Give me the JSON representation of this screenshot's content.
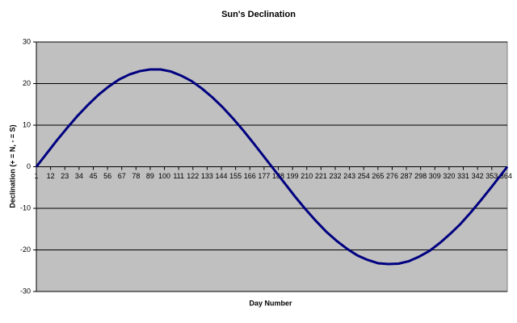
{
  "chart_data": {
    "type": "line",
    "title": "Sun's Declination",
    "x_label": "Day Number",
    "y_label": "Declination (+ = N, - = S)",
    "x": [
      1,
      9,
      17,
      25,
      33,
      41,
      49,
      57,
      65,
      73,
      81,
      89,
      97,
      105,
      113,
      121,
      129,
      137,
      145,
      153,
      161,
      169,
      177,
      185,
      193,
      201,
      209,
      217,
      225,
      233,
      241,
      249,
      257,
      265,
      273,
      281,
      289,
      297,
      305,
      313,
      321,
      329,
      337,
      345,
      353,
      361,
      365
    ],
    "series": [
      {
        "name": "Declination",
        "color": "#000080",
        "values": [
          0,
          3.2,
          6.4,
          9.4,
          12.3,
          14.9,
          17.3,
          19.3,
          21.0,
          22.2,
          23.0,
          23.4,
          23.4,
          22.9,
          21.9,
          20.6,
          18.8,
          16.7,
          14.3,
          11.6,
          8.7,
          5.6,
          2.4,
          -0.8,
          -4.0,
          -7.2,
          -10.2,
          -13.0,
          -15.6,
          -17.8,
          -19.7,
          -21.3,
          -22.4,
          -23.2,
          -23.4,
          -23.3,
          -22.7,
          -21.6,
          -20.2,
          -18.3,
          -16.1,
          -13.7,
          -10.9,
          -7.9,
          -4.8,
          -1.6,
          0
        ]
      }
    ],
    "xlim": [
      1,
      365
    ],
    "xticks": [
      1,
      12,
      23,
      34,
      45,
      56,
      67,
      78,
      89,
      100,
      111,
      122,
      133,
      144,
      155,
      166,
      177,
      188,
      199,
      210,
      221,
      232,
      243,
      254,
      265,
      276,
      287,
      298,
      309,
      320,
      331,
      342,
      353,
      364
    ],
    "ylim": [
      -30,
      30
    ],
    "yticks": [
      -30,
      -20,
      -10,
      0,
      10,
      20,
      30
    ],
    "grid": true,
    "plot_background": "#c0c0c0"
  }
}
